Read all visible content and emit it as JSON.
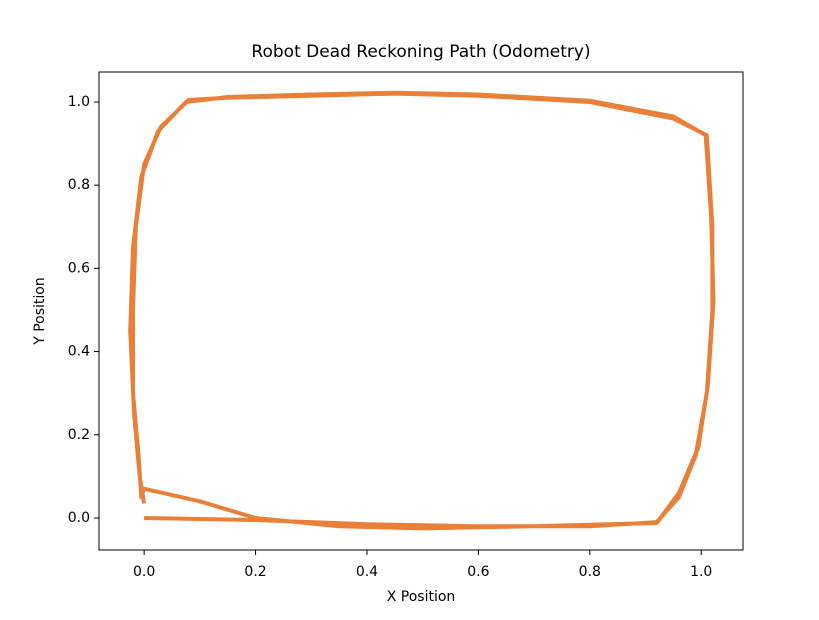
{
  "chart_data": {
    "type": "line",
    "title": "Robot Dead Reckoning Path (Odometry)",
    "x_label": "X Position",
    "y_label": "Y Position",
    "xlim": [
      -0.081,
      1.075
    ],
    "ylim": [
      -0.077,
      1.072
    ],
    "xticks": [
      {
        "value": 0,
        "label": "0.0"
      },
      {
        "value": 0.2,
        "label": "0.2"
      },
      {
        "value": 0.4,
        "label": "0.4"
      },
      {
        "value": 0.6,
        "label": "0.6"
      },
      {
        "value": 0.8,
        "label": "0.8"
      },
      {
        "value": 1,
        "label": "1.0"
      }
    ],
    "yticks": [
      {
        "value": 0,
        "label": "0.0"
      },
      {
        "value": 0.2,
        "label": "0.2"
      },
      {
        "value": 0.4,
        "label": "0.4"
      },
      {
        "value": 0.6,
        "label": "0.6"
      },
      {
        "value": 0.8,
        "label": "0.8"
      },
      {
        "value": 1,
        "label": "1.0"
      }
    ],
    "series": [
      {
        "color": "#e8803a",
        "x": [
          0,
          0.2,
          0.4,
          0.6,
          0.8,
          0.92,
          0.96,
          0.99,
          1.01,
          1.02,
          1.02,
          1.01,
          0.95,
          0.8,
          0.6,
          0.45,
          0.3,
          0.15,
          0.08,
          0.03,
          0,
          -0.015,
          -0.02,
          -0.02,
          -0.01,
          -0.005,
          0,
          0.1,
          0.2,
          0.35,
          0.5,
          0.7,
          0.92,
          0.96,
          0.995,
          1.012,
          1.022,
          1.018,
          1.008,
          0.95,
          0.8,
          0.6,
          0.45,
          0.3,
          0.15,
          0.075,
          0.025,
          -0.005,
          -0.02,
          -0.025,
          -0.018,
          -0.008,
          0
        ],
        "y": [
          0,
          -0.005,
          -0.015,
          -0.02,
          -0.02,
          -0.01,
          0.05,
          0.15,
          0.3,
          0.5,
          0.7,
          0.92,
          0.96,
          1.0,
          1.015,
          1.02,
          1.015,
          1.01,
          1.005,
          0.94,
          0.85,
          0.7,
          0.5,
          0.3,
          0.15,
          0.05,
          0.07,
          0.04,
          0.0,
          -0.02,
          -0.025,
          -0.02,
          -0.012,
          0.06,
          0.17,
          0.32,
          0.52,
          0.72,
          0.92,
          0.965,
          1.003,
          1.018,
          1.022,
          1.018,
          1.012,
          1.0,
          0.93,
          0.82,
          0.65,
          0.45,
          0.25,
          0.1,
          0.035
        ]
      }
    ]
  }
}
